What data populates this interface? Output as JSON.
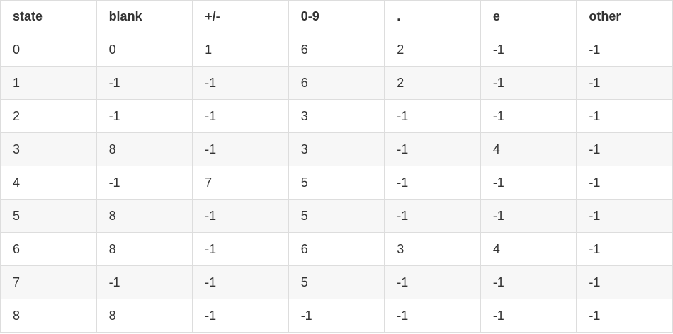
{
  "table": {
    "headers": [
      "state",
      "blank",
      "+/-",
      "0-9",
      ".",
      "e",
      "other"
    ],
    "rows": [
      [
        "0",
        "0",
        "1",
        "6",
        "2",
        "-1",
        "-1"
      ],
      [
        "1",
        "-1",
        "-1",
        "6",
        "2",
        "-1",
        "-1"
      ],
      [
        "2",
        "-1",
        "-1",
        "3",
        "-1",
        "-1",
        "-1"
      ],
      [
        "3",
        "8",
        "-1",
        "3",
        "-1",
        "4",
        "-1"
      ],
      [
        "4",
        "-1",
        "7",
        "5",
        "-1",
        "-1",
        "-1"
      ],
      [
        "5",
        "8",
        "-1",
        "5",
        "-1",
        "-1",
        "-1"
      ],
      [
        "6",
        "8",
        "-1",
        "6",
        "3",
        "4",
        "-1"
      ],
      [
        "7",
        "-1",
        "-1",
        "5",
        "-1",
        "-1",
        "-1"
      ],
      [
        "8",
        "8",
        "-1",
        "-1",
        "-1",
        "-1",
        "-1"
      ]
    ]
  },
  "colors": {
    "text": "#333333",
    "border": "#dddddd",
    "stripe": "#f7f7f7",
    "background": "#ffffff"
  }
}
